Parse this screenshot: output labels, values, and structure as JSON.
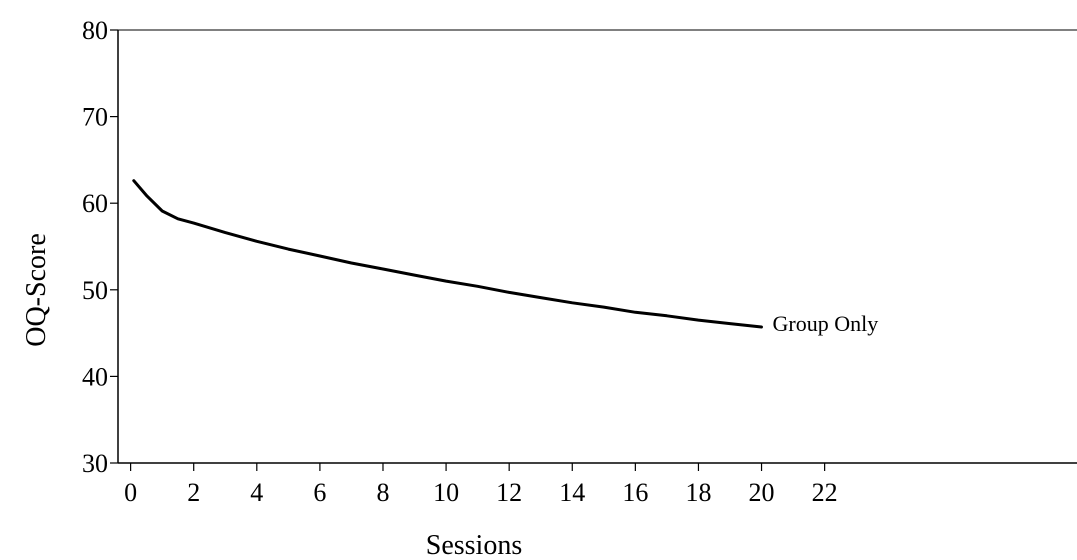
{
  "chart_data": {
    "type": "line",
    "title": "",
    "xlabel": "Sessions",
    "ylabel": "OQ-Score",
    "xlim": [
      -0.4,
      30
    ],
    "ylim": [
      30,
      80
    ],
    "xticks": [
      0,
      2,
      4,
      6,
      8,
      10,
      12,
      14,
      16,
      18,
      20,
      22
    ],
    "yticks": [
      30,
      40,
      50,
      60,
      70,
      80
    ],
    "grid": false,
    "colors": {
      "line": "#000000",
      "axis": "#000000",
      "background": "#ffffff"
    },
    "series": [
      {
        "name": "Group Only",
        "x": [
          0.1,
          0.5,
          1,
          1.5,
          2,
          3,
          4,
          5,
          6,
          7,
          8,
          9,
          10,
          11,
          12,
          13,
          14,
          15,
          16,
          17,
          18,
          19,
          20
        ],
        "y": [
          62.6,
          60.9,
          59.1,
          58.2,
          57.7,
          56.6,
          55.6,
          54.7,
          53.9,
          53.1,
          52.4,
          51.7,
          51.0,
          50.4,
          49.7,
          49.1,
          48.5,
          48.0,
          47.4,
          47.0,
          46.5,
          46.1,
          45.7
        ]
      }
    ]
  }
}
